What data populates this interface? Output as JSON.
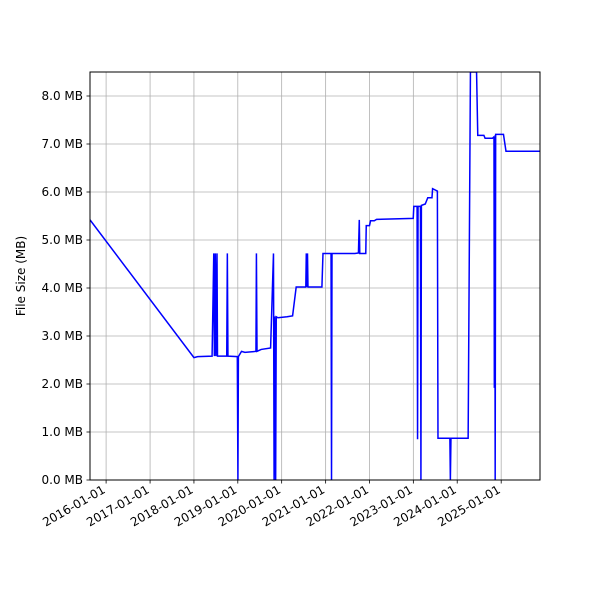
{
  "chart_data": {
    "type": "line",
    "title": "",
    "xlabel": "",
    "ylabel": "File Size (MB)",
    "grid": true,
    "series_color": "#0000ff",
    "x_ticks": [
      "2016-01-01",
      "2017-01-01",
      "2018-01-01",
      "2019-01-01",
      "2020-01-01",
      "2021-01-01",
      "2022-01-01",
      "2023-01-01",
      "2024-01-01",
      "2025-01-01"
    ],
    "y_ticks": [
      "0.0 MB",
      "1.0 MB",
      "2.0 MB",
      "3.0 MB",
      "4.0 MB",
      "5.0 MB",
      "6.0 MB",
      "7.0 MB",
      "8.0 MB"
    ],
    "xlim": [
      "2015-08-20",
      "2025-11-20"
    ],
    "ylim": [
      0,
      8.5
    ],
    "series": [
      {
        "points": [
          [
            "2015-08-20",
            5.42
          ],
          [
            "2018-01-01",
            2.55
          ],
          [
            "2018-02-01",
            2.57
          ],
          [
            "2018-06-01",
            2.58
          ],
          [
            "2018-06-15",
            4.72
          ],
          [
            "2018-06-20",
            2.58
          ],
          [
            "2018-06-28",
            4.72
          ],
          [
            "2018-07-03",
            2.58
          ],
          [
            "2018-07-12",
            4.72
          ],
          [
            "2018-07-16",
            2.58
          ],
          [
            "2018-10-01",
            2.58
          ],
          [
            "2018-10-06",
            4.72
          ],
          [
            "2018-10-11",
            2.58
          ],
          [
            "2018-12-28",
            2.57
          ],
          [
            "2019-01-02",
            0.0
          ],
          [
            "2019-01-06",
            2.57
          ],
          [
            "2019-02-01",
            2.68
          ],
          [
            "2019-03-01",
            2.66
          ],
          [
            "2019-06-01",
            2.68
          ],
          [
            "2019-06-05",
            4.72
          ],
          [
            "2019-06-10",
            2.68
          ],
          [
            "2019-07-15",
            2.72
          ],
          [
            "2019-10-01",
            2.75
          ],
          [
            "2019-10-25",
            4.72
          ],
          [
            "2019-10-30",
            0.0
          ],
          [
            "2019-11-04",
            3.41
          ],
          [
            "2019-11-12",
            0.0
          ],
          [
            "2019-11-17",
            3.4
          ],
          [
            "2019-12-01",
            3.38
          ],
          [
            "2020-02-15",
            3.4
          ],
          [
            "2020-04-01",
            3.42
          ],
          [
            "2020-05-01",
            4.02
          ],
          [
            "2020-07-20",
            4.02
          ],
          [
            "2020-07-24",
            4.72
          ],
          [
            "2020-07-28",
            4.02
          ],
          [
            "2020-08-03",
            4.72
          ],
          [
            "2020-08-07",
            4.02
          ],
          [
            "2020-12-01",
            4.02
          ],
          [
            "2020-12-10",
            4.72
          ],
          [
            "2021-02-15",
            4.72
          ],
          [
            "2021-02-19",
            0.0
          ],
          [
            "2021-02-23",
            4.72
          ],
          [
            "2021-07-01",
            4.72
          ],
          [
            "2021-09-01",
            4.72
          ],
          [
            "2021-10-01",
            4.73
          ],
          [
            "2021-10-08",
            5.42
          ],
          [
            "2021-10-12",
            4.72
          ],
          [
            "2021-12-01",
            4.72
          ],
          [
            "2021-12-05",
            5.3
          ],
          [
            "2022-01-01",
            5.3
          ],
          [
            "2022-01-10",
            5.4
          ],
          [
            "2022-02-10",
            5.4
          ],
          [
            "2022-03-01",
            5.43
          ],
          [
            "2022-12-31",
            5.45
          ],
          [
            "2023-01-05",
            5.7
          ],
          [
            "2023-02-01",
            5.7
          ],
          [
            "2023-02-05",
            0.85
          ],
          [
            "2023-02-09",
            5.7
          ],
          [
            "2023-03-01",
            5.7
          ],
          [
            "2023-03-05",
            0.0
          ],
          [
            "2023-03-09",
            5.72
          ],
          [
            "2023-04-10",
            5.75
          ],
          [
            "2023-05-01",
            5.88
          ],
          [
            "2023-06-05",
            5.88
          ],
          [
            "2023-06-10",
            6.07
          ],
          [
            "2023-07-20",
            6.02
          ],
          [
            "2023-07-25",
            0.87
          ],
          [
            "2023-11-01",
            0.87
          ],
          [
            "2023-11-05",
            0.0
          ],
          [
            "2023-11-10",
            0.87
          ],
          [
            "2024-01-01",
            0.87
          ],
          [
            "2024-04-01",
            0.87
          ],
          [
            "2024-04-20",
            8.5
          ],
          [
            "2024-06-10",
            8.5
          ],
          [
            "2024-06-20",
            7.18
          ],
          [
            "2024-08-10",
            7.18
          ],
          [
            "2024-08-20",
            7.12
          ],
          [
            "2024-10-20",
            7.12
          ],
          [
            "2024-11-02",
            7.15
          ],
          [
            "2024-11-05",
            1.92
          ],
          [
            "2024-11-08",
            7.15
          ],
          [
            "2024-11-12",
            0.0
          ],
          [
            "2024-11-16",
            7.2
          ],
          [
            "2025-01-01",
            7.2
          ],
          [
            "2025-01-20",
            7.2
          ],
          [
            "2025-02-10",
            6.85
          ],
          [
            "2025-11-20",
            6.85
          ]
        ]
      }
    ]
  }
}
